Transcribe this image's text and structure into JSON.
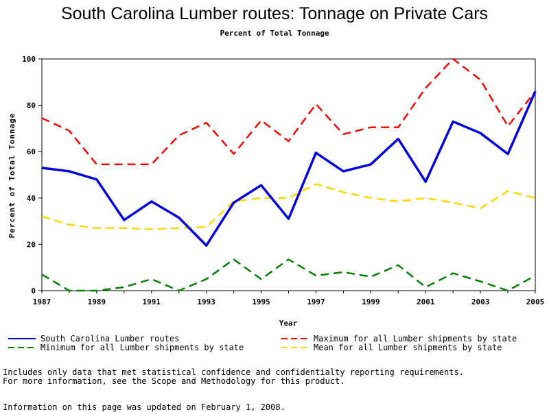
{
  "chart_data": {
    "type": "line",
    "title": "South Carolina Lumber routes: Tonnage on Private Cars",
    "subtitle": "Percent of Total Tonnage",
    "xlabel": "Year",
    "ylabel": "Percent of Total Tonnage",
    "xlim": [
      1987,
      2005
    ],
    "ylim": [
      0,
      100
    ],
    "x_ticks": [
      1987,
      1989,
      1991,
      1993,
      1995,
      1997,
      1999,
      2001,
      2003,
      2005
    ],
    "y_ticks": [
      0,
      20,
      40,
      60,
      80,
      100
    ],
    "grid": false,
    "legend_position": "bottom",
    "x": [
      1987,
      1988,
      1989,
      1990,
      1991,
      1992,
      1993,
      1994,
      1995,
      1996,
      1997,
      1998,
      1999,
      2000,
      2001,
      2002,
      2003,
      2004,
      2005
    ],
    "series": [
      {
        "name": "South Carolina Lumber routes",
        "color": "#0000e0",
        "dash": "solid",
        "values": [
          53,
          51.5,
          48,
          30.5,
          38.5,
          31.5,
          19.5,
          38,
          45.5,
          31,
          59.5,
          51.5,
          54.5,
          65.5,
          47,
          73,
          68,
          59,
          86
        ]
      },
      {
        "name": "Maximum for all Lumber shipments by state",
        "color": "#ff0000",
        "dash": "dashed",
        "values": [
          74.5,
          69,
          54.5,
          54.5,
          54.5,
          67,
          72.5,
          59,
          73.5,
          64.5,
          80.5,
          67.5,
          70.5,
          70.5,
          87.5,
          100,
          91,
          71,
          86
        ]
      },
      {
        "name": "Minimum for all Lumber shipments by state",
        "color": "#008000",
        "dash": "dashed",
        "values": [
          7,
          0,
          0,
          1.5,
          5,
          0,
          5,
          13.5,
          5,
          13.5,
          6.5,
          8,
          6,
          11,
          1.5,
          7.5,
          4,
          0,
          6.5
        ]
      },
      {
        "name": "Mean for all Lumber shipments by state",
        "color": "#ffd700",
        "dash": "dashed",
        "values": [
          32,
          28.5,
          27,
          27,
          26.5,
          27,
          27.5,
          38.5,
          40,
          40,
          46,
          42.5,
          40,
          38.5,
          40,
          38,
          35.5,
          43,
          40
        ]
      }
    ]
  },
  "notes": {
    "line1": "Includes only data that met statistical confidence and confidentialty reporting requirements.",
    "line2": "For more information, see the Scope and Methodology for this product.",
    "line3": "Information on this page was updated on February 1, 2008."
  }
}
